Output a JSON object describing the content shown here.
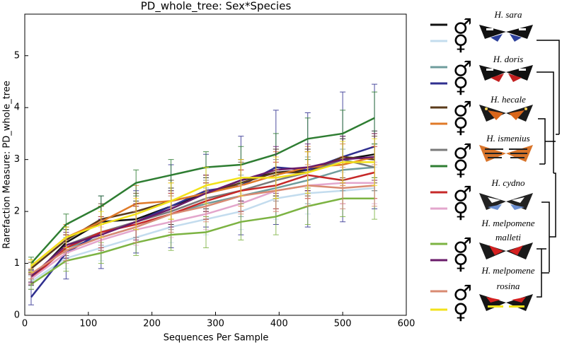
{
  "chart_data": {
    "type": "line",
    "title": "PD_whole_tree: Sex*Species",
    "x_label": "Sequences Per Sample",
    "y_label": "Rarefaction Measure: PD_whole_tree",
    "x": [
      10,
      65,
      120,
      175,
      230,
      285,
      340,
      395,
      445,
      500,
      550
    ],
    "xlim": [
      0,
      600
    ],
    "xticks": [
      0,
      100,
      200,
      300,
      400,
      500,
      600
    ],
    "ylim": [
      0,
      5.8
    ],
    "yticks": [
      0,
      1,
      2,
      3,
      4,
      5
    ],
    "species": [
      "H. sara",
      "H. doris",
      "H. hecale",
      "H. ismenius",
      "H. cydno",
      "H. melpomene malleti",
      "H. melpomene rosina"
    ],
    "series": [
      {
        "name": "♂",
        "color": "#111111",
        "values": [
          0.7,
          1.4,
          1.8,
          1.85,
          2.1,
          2.35,
          2.6,
          2.75,
          2.8,
          3.0,
          3.1
        ],
        "errors": [
          0.12,
          0.25,
          0.3,
          0.35,
          0.35,
          0.3,
          0.4,
          0.45,
          0.4,
          0.4,
          0.45
        ]
      },
      {
        "name": "♀",
        "color": "#c3dcee",
        "values": [
          0.65,
          1.1,
          1.3,
          1.5,
          1.7,
          1.85,
          2.0,
          2.25,
          2.35,
          2.4,
          2.45
        ],
        "errors": [
          0.1,
          0.2,
          0.25,
          0.3,
          0.3,
          0.3,
          0.35,
          0.4,
          0.4,
          0.35,
          0.4
        ]
      },
      {
        "name": "♂",
        "color": "#6f9c9c",
        "values": [
          0.7,
          1.3,
          1.5,
          1.7,
          1.95,
          2.15,
          2.3,
          2.45,
          2.6,
          2.8,
          2.85
        ],
        "errors": [
          0.1,
          0.2,
          0.25,
          0.3,
          0.35,
          0.3,
          0.4,
          0.4,
          0.45,
          0.4,
          0.45
        ]
      },
      {
        "name": "♀",
        "color": "#2f2f8f",
        "values": [
          0.35,
          1.2,
          1.6,
          1.8,
          2.1,
          2.4,
          2.5,
          2.85,
          2.8,
          3.05,
          3.25
        ],
        "errors": [
          0.15,
          0.5,
          0.7,
          0.6,
          0.8,
          0.7,
          0.95,
          1.1,
          1.1,
          1.25,
          1.2
        ]
      },
      {
        "name": "♂",
        "color": "#5a3a1a",
        "values": [
          0.9,
          1.45,
          1.85,
          2.0,
          2.2,
          2.35,
          2.55,
          2.75,
          2.75,
          3.05,
          3.0
        ],
        "errors": [
          0.12,
          0.25,
          0.3,
          0.35,
          0.4,
          0.35,
          0.4,
          0.45,
          0.45,
          0.4,
          0.45
        ]
      },
      {
        "name": "♀",
        "color": "#e07a28",
        "values": [
          0.95,
          1.5,
          1.8,
          2.15,
          2.2,
          2.35,
          2.5,
          2.7,
          2.85,
          2.9,
          3.05
        ],
        "errors": [
          0.12,
          0.25,
          0.3,
          0.35,
          0.35,
          0.35,
          0.4,
          0.45,
          0.4,
          0.4,
          0.45
        ]
      },
      {
        "name": "♂",
        "color": "#7a7a7a",
        "values": [
          0.75,
          1.35,
          1.6,
          1.8,
          2.0,
          2.25,
          2.4,
          2.6,
          2.75,
          3.0,
          2.85
        ],
        "errors": [
          0.1,
          0.2,
          0.25,
          0.3,
          0.35,
          0.35,
          0.4,
          0.4,
          0.4,
          0.45,
          0.45
        ]
      },
      {
        "name": "♀",
        "color": "#2e7d32",
        "values": [
          1.0,
          1.75,
          2.1,
          2.55,
          2.7,
          2.85,
          2.9,
          3.1,
          3.4,
          3.5,
          3.8
        ],
        "errors": [
          0.12,
          0.2,
          0.2,
          0.25,
          0.3,
          0.3,
          0.35,
          0.4,
          0.4,
          0.45,
          0.5
        ]
      },
      {
        "name": "♂",
        "color": "#c62828",
        "values": [
          0.7,
          1.3,
          1.6,
          1.75,
          1.95,
          2.2,
          2.4,
          2.5,
          2.7,
          2.6,
          2.75
        ],
        "errors": [
          0.1,
          0.25,
          0.3,
          0.35,
          0.4,
          0.35,
          0.4,
          0.45,
          0.45,
          0.45,
          0.5
        ]
      },
      {
        "name": "♀",
        "color": "#e3a6cc",
        "values": [
          0.7,
          1.2,
          1.45,
          1.65,
          1.8,
          1.95,
          2.15,
          2.4,
          2.5,
          2.55,
          2.55
        ],
        "errors": [
          0.1,
          0.2,
          0.25,
          0.3,
          0.3,
          0.3,
          0.35,
          0.4,
          0.4,
          0.4,
          0.4
        ]
      },
      {
        "name": "♂",
        "color": "#7cb342",
        "values": [
          0.6,
          1.05,
          1.2,
          1.4,
          1.55,
          1.6,
          1.8,
          1.9,
          2.1,
          2.25,
          2.25
        ],
        "errors": [
          0.1,
          0.2,
          0.2,
          0.25,
          0.3,
          0.3,
          0.35,
          0.35,
          0.35,
          0.35,
          0.4
        ]
      },
      {
        "name": "♀",
        "color": "#6a1b6a",
        "values": [
          0.75,
          1.35,
          1.55,
          1.8,
          2.05,
          2.35,
          2.6,
          2.8,
          2.85,
          3.0,
          3.05
        ],
        "errors": [
          0.12,
          0.25,
          0.3,
          0.35,
          0.35,
          0.35,
          0.4,
          0.45,
          0.45,
          0.45,
          0.45
        ]
      },
      {
        "name": "♂",
        "color": "#d98a72",
        "values": [
          0.8,
          1.25,
          1.5,
          1.7,
          1.95,
          2.1,
          2.3,
          2.4,
          2.5,
          2.45,
          2.5
        ],
        "errors": [
          0.1,
          0.2,
          0.25,
          0.3,
          0.35,
          0.3,
          0.35,
          0.4,
          0.4,
          0.4,
          0.4
        ]
      },
      {
        "name": "♀",
        "color": "#f2e21a",
        "values": [
          0.95,
          1.5,
          1.75,
          1.95,
          2.2,
          2.5,
          2.65,
          2.65,
          2.75,
          2.95,
          2.95
        ],
        "errors": [
          0.12,
          0.2,
          0.25,
          0.3,
          0.35,
          0.35,
          0.35,
          0.4,
          0.4,
          0.4,
          0.45
        ]
      }
    ]
  }
}
